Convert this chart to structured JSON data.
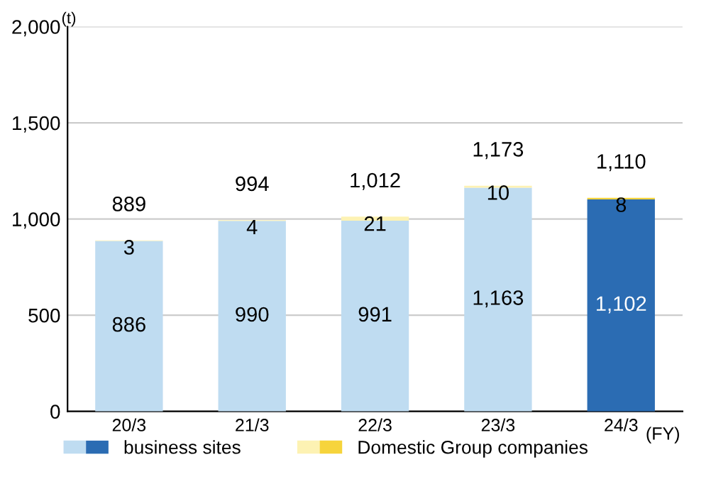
{
  "chart_data": {
    "type": "bar",
    "stacked": true,
    "categories": [
      "20/3",
      "21/3",
      "22/3",
      "23/3",
      "24/3"
    ],
    "xlabel": "(FY)",
    "ylabel": "(t)",
    "series": [
      {
        "name": "business sites",
        "colors": [
          "#bfdcf1",
          "#bfdcf1",
          "#bfdcf1",
          "#bfdcf1",
          "#2b6cb3"
        ],
        "values": [
          886,
          990,
          991,
          1163,
          1102
        ],
        "value_labels": [
          "886",
          "990",
          "991",
          "1,163",
          "1,102"
        ]
      },
      {
        "name": "Domestic Group companies",
        "colors": [
          "#fdf2b3",
          "#fdf2b3",
          "#fdf2b3",
          "#fdf2b3",
          "#f6d43c"
        ],
        "values": [
          3,
          4,
          21,
          10,
          8
        ],
        "value_labels": [
          "3",
          "4",
          "21",
          "10",
          "8"
        ]
      }
    ],
    "totals": [
      "889",
      "994",
      "1,012",
      "1,173",
      "1,110"
    ],
    "ylim": [
      0,
      2000
    ],
    "yticks": [
      0,
      500,
      {
        "value": 1000,
        "label": "1,000"
      },
      {
        "value": 1500,
        "label": "1,500"
      },
      {
        "value": 2000,
        "label": "2,000"
      }
    ],
    "grid": "y",
    "legend": "bottom"
  }
}
